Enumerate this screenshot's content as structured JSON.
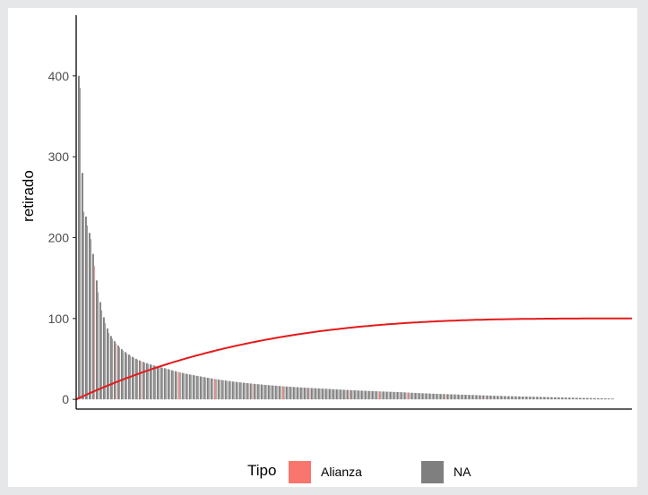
{
  "chart_data": {
    "type": "bar",
    "ylabel": "retirado",
    "xlabel": "",
    "ylim": [
      -12,
      475
    ],
    "yticks": [
      0,
      100,
      200,
      300,
      400
    ],
    "grid": false,
    "legend": {
      "title": "Tipo",
      "placement": "bottom",
      "entries": [
        {
          "label": "Alianza",
          "color": "#f8766d"
        },
        {
          "label": "NA",
          "color": "#7f7f7f"
        }
      ]
    },
    "bar_count": 300,
    "bar_colors": {
      "default": "#7f7f7f",
      "highlight": "#d7837f"
    },
    "bar_value_profile": {
      "anchors": [
        [
          1,
          400
        ],
        [
          2,
          385
        ],
        [
          3,
          280
        ],
        [
          4,
          232
        ],
        [
          5,
          226
        ],
        [
          6,
          215
        ],
        [
          8,
          198
        ],
        [
          10,
          165
        ],
        [
          14,
          110
        ],
        [
          18,
          82
        ],
        [
          25,
          62
        ],
        [
          35,
          48
        ],
        [
          50,
          38
        ],
        [
          70,
          28
        ],
        [
          100,
          19
        ],
        [
          140,
          13
        ],
        [
          180,
          9
        ],
        [
          220,
          5.5
        ],
        [
          260,
          3
        ],
        [
          290,
          1.5
        ],
        [
          300,
          1
        ]
      ]
    },
    "highlight_bars": [
      10,
      22,
      36,
      57,
      77,
      98,
      115,
      130,
      152,
      169,
      185,
      206,
      228
    ],
    "curve": {
      "name": "",
      "color": "#e41a1c",
      "y_asymptote": 100,
      "y_end": 100
    }
  }
}
